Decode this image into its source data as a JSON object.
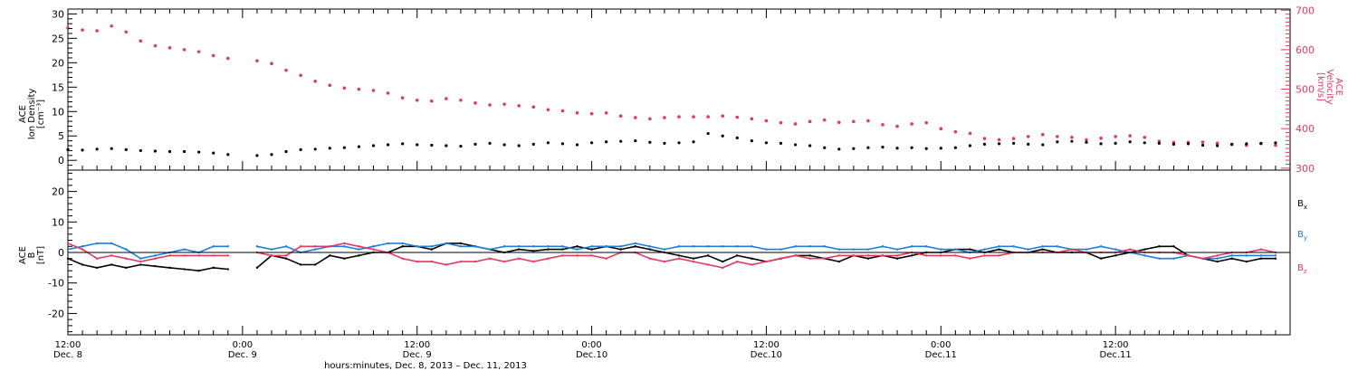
{
  "colors": {
    "density": "#000000",
    "velocity": "#e8385e",
    "bx": "#000000",
    "by": "#1a7fe0",
    "bz": "#e8385e",
    "axis": "#000000"
  },
  "top_panel": {
    "left_label": [
      "ACE",
      "Ion Density",
      "[cm⁻³]"
    ],
    "right_label": [
      "ACE",
      "Velocity",
      "[km/s]"
    ]
  },
  "bottom_panel": {
    "left_label": [
      "ACE",
      "B",
      "[nT]"
    ],
    "legend": [
      "Bx",
      "By",
      "Bz"
    ]
  },
  "x_axis": {
    "ticks": [
      {
        "time": "12:00",
        "date": "Dec. 8"
      },
      {
        "time": "0:00",
        "date": "Dec. 9"
      },
      {
        "time": "12:00",
        "date": "Dec. 9"
      },
      {
        "time": "0:00",
        "date": "Dec.10"
      },
      {
        "time": "12:00",
        "date": "Dec.10"
      },
      {
        "time": "0:00",
        "date": "Dec.11"
      },
      {
        "time": "12:00",
        "date": "Dec.11"
      }
    ],
    "title": "hours:minutes, Dec. 8, 2013 – Dec. 11, 2013"
  },
  "chart_data": [
    {
      "type": "scatter",
      "panel": "top",
      "x_unit": "hours since Dec. 8 12:00",
      "xlim": [
        0,
        84
      ],
      "y_left": {
        "label": "ACE Ion Density [cm^-3]",
        "lim": [
          -2,
          31
        ],
        "ticks": [
          0,
          5,
          10,
          15,
          20,
          25,
          30
        ]
      },
      "y_right": {
        "label": "ACE Velocity [km/s]",
        "lim": [
          295,
          703
        ],
        "ticks": [
          300,
          400,
          500,
          600,
          700
        ]
      },
      "series": [
        {
          "name": "Ion Density",
          "axis": "left",
          "x": [
            0,
            1,
            2,
            3,
            4,
            5,
            6,
            7,
            8,
            9,
            10,
            11,
            13,
            14,
            15,
            16,
            17,
            18,
            19,
            20,
            21,
            22,
            23,
            24,
            25,
            26,
            27,
            28,
            29,
            30,
            31,
            32,
            33,
            34,
            35,
            36,
            37,
            38,
            39,
            40,
            41,
            42,
            43,
            44,
            45,
            46,
            47,
            48,
            49,
            50,
            51,
            52,
            53,
            54,
            55,
            56,
            57,
            58,
            59,
            60,
            61,
            62,
            63,
            64,
            65,
            66,
            67,
            68,
            69,
            70,
            71,
            72,
            73,
            74,
            75,
            76,
            77,
            78,
            79,
            80,
            81,
            82,
            83
          ],
          "y": [
            2.2,
            2.1,
            2.3,
            2.4,
            2.2,
            2.0,
            1.9,
            1.8,
            1.8,
            1.7,
            1.5,
            1.2,
            1.0,
            1.2,
            1.8,
            2.2,
            2.3,
            2.5,
            2.6,
            2.8,
            3.0,
            3.2,
            3.4,
            3.2,
            3.1,
            3.0,
            2.9,
            3.3,
            3.5,
            3.2,
            3.0,
            3.3,
            3.6,
            3.4,
            3.2,
            3.6,
            3.8,
            3.9,
            4.0,
            3.7,
            3.5,
            3.6,
            3.8,
            5.5,
            5.0,
            4.6,
            4.0,
            3.6,
            3.5,
            3.2,
            3.0,
            2.6,
            2.3,
            2.4,
            2.6,
            2.7,
            2.5,
            2.6,
            2.4,
            2.5,
            2.6,
            3.0,
            3.3,
            3.4,
            3.5,
            3.3,
            3.2,
            3.8,
            3.9,
            3.7,
            3.4,
            3.5,
            3.8,
            3.6,
            3.5,
            3.3,
            3.4,
            3.1,
            3.0,
            3.3,
            3.4,
            3.5,
            3.6
          ]
        },
        {
          "name": "Velocity",
          "axis": "right",
          "x": [
            0,
            1,
            2,
            3,
            4,
            5,
            6,
            7,
            8,
            9,
            10,
            11,
            13,
            14,
            15,
            16,
            17,
            18,
            19,
            20,
            21,
            22,
            23,
            24,
            25,
            26,
            27,
            28,
            29,
            30,
            31,
            32,
            33,
            34,
            35,
            36,
            37,
            38,
            39,
            40,
            41,
            42,
            43,
            44,
            45,
            46,
            47,
            48,
            49,
            50,
            51,
            52,
            53,
            54,
            55,
            56,
            57,
            58,
            59,
            60,
            61,
            62,
            63,
            64,
            65,
            66,
            67,
            68,
            69,
            70,
            71,
            72,
            73,
            74,
            75,
            76,
            77,
            78,
            79,
            80,
            81,
            82,
            83
          ],
          "y": [
            655,
            650,
            648,
            660,
            645,
            622,
            610,
            605,
            600,
            595,
            585,
            578,
            572,
            565,
            548,
            535,
            520,
            510,
            503,
            500,
            497,
            490,
            478,
            472,
            470,
            476,
            472,
            465,
            460,
            462,
            458,
            455,
            448,
            445,
            440,
            438,
            440,
            432,
            428,
            425,
            428,
            430,
            430,
            430,
            432,
            429,
            425,
            420,
            415,
            412,
            418,
            422,
            416,
            418,
            420,
            410,
            406,
            412,
            415,
            400,
            392,
            388,
            375,
            372,
            375,
            380,
            385,
            380,
            378,
            372,
            376,
            380,
            382,
            378,
            368,
            365,
            365,
            366,
            363,
            360,
            358,
            362,
            358
          ]
        }
      ]
    },
    {
      "type": "line",
      "panel": "bottom",
      "x_unit": "hours since Dec. 8 12:00",
      "xlim": [
        0,
        84
      ],
      "ylim": [
        -27,
        27
      ],
      "y_ticks": [
        -20,
        -10,
        0,
        10,
        20
      ],
      "zero_line": true,
      "series": [
        {
          "name": "Bx",
          "x": [
            0,
            1,
            2,
            3,
            4,
            5,
            6,
            7,
            8,
            9,
            10,
            11,
            13,
            14,
            15,
            16,
            17,
            18,
            19,
            20,
            21,
            22,
            23,
            24,
            25,
            26,
            27,
            28,
            29,
            30,
            31,
            32,
            33,
            34,
            35,
            36,
            37,
            38,
            39,
            40,
            41,
            42,
            43,
            44,
            45,
            46,
            47,
            48,
            49,
            50,
            51,
            52,
            53,
            54,
            55,
            56,
            57,
            58,
            59,
            60,
            61,
            62,
            63,
            64,
            65,
            66,
            67,
            68,
            69,
            70,
            71,
            72,
            73,
            74,
            75,
            76,
            77,
            78,
            79,
            80,
            81,
            82,
            83
          ],
          "y": [
            -2,
            -4,
            -5,
            -4,
            -5,
            -4,
            -4.5,
            -5,
            -5.5,
            -6,
            -5,
            -5.5,
            -5,
            -1,
            -2,
            -4,
            -4,
            -1,
            -2,
            -1,
            0,
            0,
            2,
            2,
            1,
            3,
            3,
            2,
            1,
            0,
            1,
            0.5,
            1,
            1,
            2,
            1,
            2,
            1,
            2,
            1,
            0,
            -1,
            -2,
            -1,
            -3,
            -1,
            -2,
            -3,
            -2,
            -1,
            -1,
            -2,
            -3,
            -1,
            -2,
            -1,
            -2,
            -1,
            0,
            0,
            1,
            1,
            0,
            1,
            0,
            0,
            1,
            0,
            0,
            0,
            -2,
            -1,
            0,
            1,
            2,
            2,
            -1,
            -2,
            -3,
            -2,
            -3,
            -2,
            -2
          ]
        },
        {
          "name": "By",
          "x": [
            0,
            1,
            2,
            3,
            4,
            5,
            6,
            7,
            8,
            9,
            10,
            11,
            13,
            14,
            15,
            16,
            17,
            18,
            19,
            20,
            21,
            22,
            23,
            24,
            25,
            26,
            27,
            28,
            29,
            30,
            31,
            32,
            33,
            34,
            35,
            36,
            37,
            38,
            39,
            40,
            41,
            42,
            43,
            44,
            45,
            46,
            47,
            48,
            49,
            50,
            51,
            52,
            53,
            54,
            55,
            56,
            57,
            58,
            59,
            60,
            61,
            62,
            63,
            64,
            65,
            66,
            67,
            68,
            69,
            70,
            71,
            72,
            73,
            74,
            75,
            76,
            77,
            78,
            79,
            80,
            81,
            82,
            83
          ],
          "y": [
            1,
            2,
            3,
            3,
            1,
            -2,
            -1,
            0,
            1,
            0,
            2,
            2,
            2,
            1,
            2,
            0,
            1,
            2,
            2,
            1,
            2,
            3,
            3,
            2,
            2,
            3,
            2,
            2,
            1,
            2,
            2,
            2,
            2,
            2,
            1,
            2,
            2,
            2,
            3,
            2,
            1,
            2,
            2,
            2,
            2,
            2,
            2,
            1,
            1,
            2,
            2,
            2,
            1,
            1,
            1,
            2,
            1,
            2,
            2,
            1,
            1,
            0,
            1,
            2,
            2,
            1,
            2,
            2,
            1,
            1,
            2,
            1,
            0,
            -1,
            -2,
            -2,
            -1,
            -2,
            -2,
            -1,
            -1,
            -1,
            -1
          ]
        },
        {
          "name": "Bz",
          "x": [
            0,
            1,
            2,
            3,
            4,
            5,
            6,
            7,
            8,
            9,
            10,
            11,
            13,
            14,
            15,
            16,
            17,
            18,
            19,
            20,
            21,
            22,
            23,
            24,
            25,
            26,
            27,
            28,
            29,
            30,
            31,
            32,
            33,
            34,
            35,
            36,
            37,
            38,
            39,
            40,
            41,
            42,
            43,
            44,
            45,
            46,
            47,
            48,
            49,
            50,
            51,
            52,
            53,
            54,
            55,
            56,
            57,
            58,
            59,
            60,
            61,
            62,
            63,
            64,
            65,
            66,
            67,
            68,
            69,
            70,
            71,
            72,
            73,
            74,
            75,
            76,
            77,
            78,
            79,
            80,
            81,
            82,
            83
          ],
          "y": [
            3,
            1,
            -2,
            -1,
            -2,
            -3,
            -2,
            -1,
            -1,
            -1,
            -1,
            -1,
            0,
            -1,
            -1,
            2,
            2,
            2,
            3,
            2,
            1,
            0,
            -2,
            -3,
            -3,
            -4,
            -3,
            -3,
            -2,
            -3,
            -2,
            -3,
            -2,
            -1,
            -1,
            -1,
            -2,
            0,
            0,
            -2,
            -3,
            -2,
            -3,
            -4,
            -5,
            -3,
            -4,
            -3,
            -2,
            -1,
            -2,
            -2,
            -1,
            -1,
            -1,
            -1,
            -1,
            0,
            -1,
            -1,
            -1,
            -2,
            -1,
            -1,
            0,
            0,
            0,
            0,
            1,
            0,
            0,
            0,
            1,
            0,
            0,
            0,
            -1,
            -2,
            -1,
            0,
            0,
            1,
            0
          ]
        }
      ]
    }
  ]
}
